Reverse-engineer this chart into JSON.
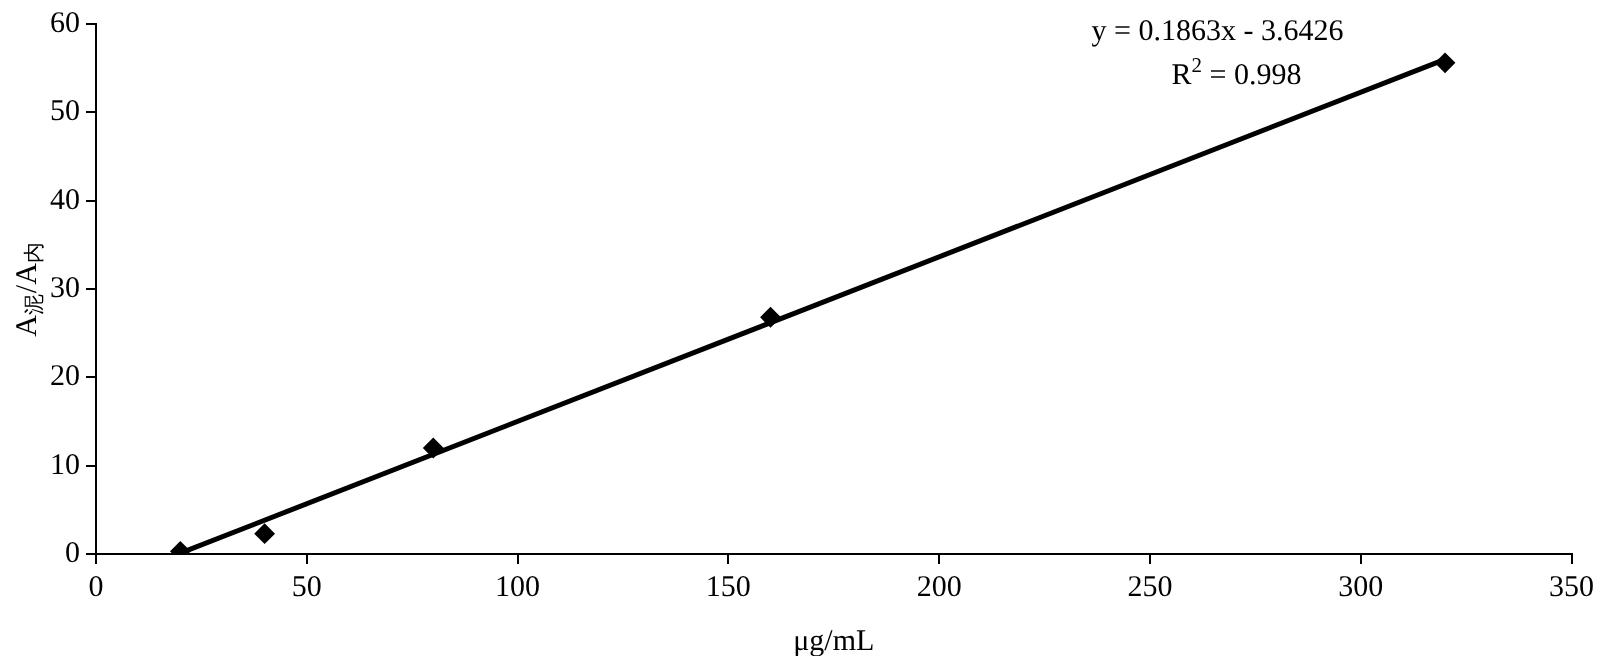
{
  "chart_data": {
    "type": "scatter",
    "xlabel": "μg/mL",
    "ylabel": "A$_{泥}$/A$_{内}$",
    "xlim": [
      0,
      350
    ],
    "xticks": [
      0,
      50,
      100,
      150,
      200,
      250,
      300,
      350
    ],
    "ylim": [
      0,
      60
    ],
    "yticks": [
      0,
      10,
      20,
      30,
      40,
      50,
      60
    ],
    "grid": false,
    "legend": false,
    "marker": "diamond",
    "series": [
      {
        "type": "scatter",
        "color": "#000000",
        "x": [
          20,
          40,
          80,
          160,
          320
        ],
        "values": [
          0.3,
          2.3,
          12,
          26.8,
          55.6
        ]
      },
      {
        "type": "line",
        "color": "#000000",
        "x": [
          20,
          320
        ],
        "values": [
          0.1,
          56.0
        ],
        "marker": "none",
        "line_style": "solid"
      }
    ],
    "annotations": [
      "y = 0.1863x - 3.6426",
      "R$^{2}$ = 0.998"
    ]
  }
}
